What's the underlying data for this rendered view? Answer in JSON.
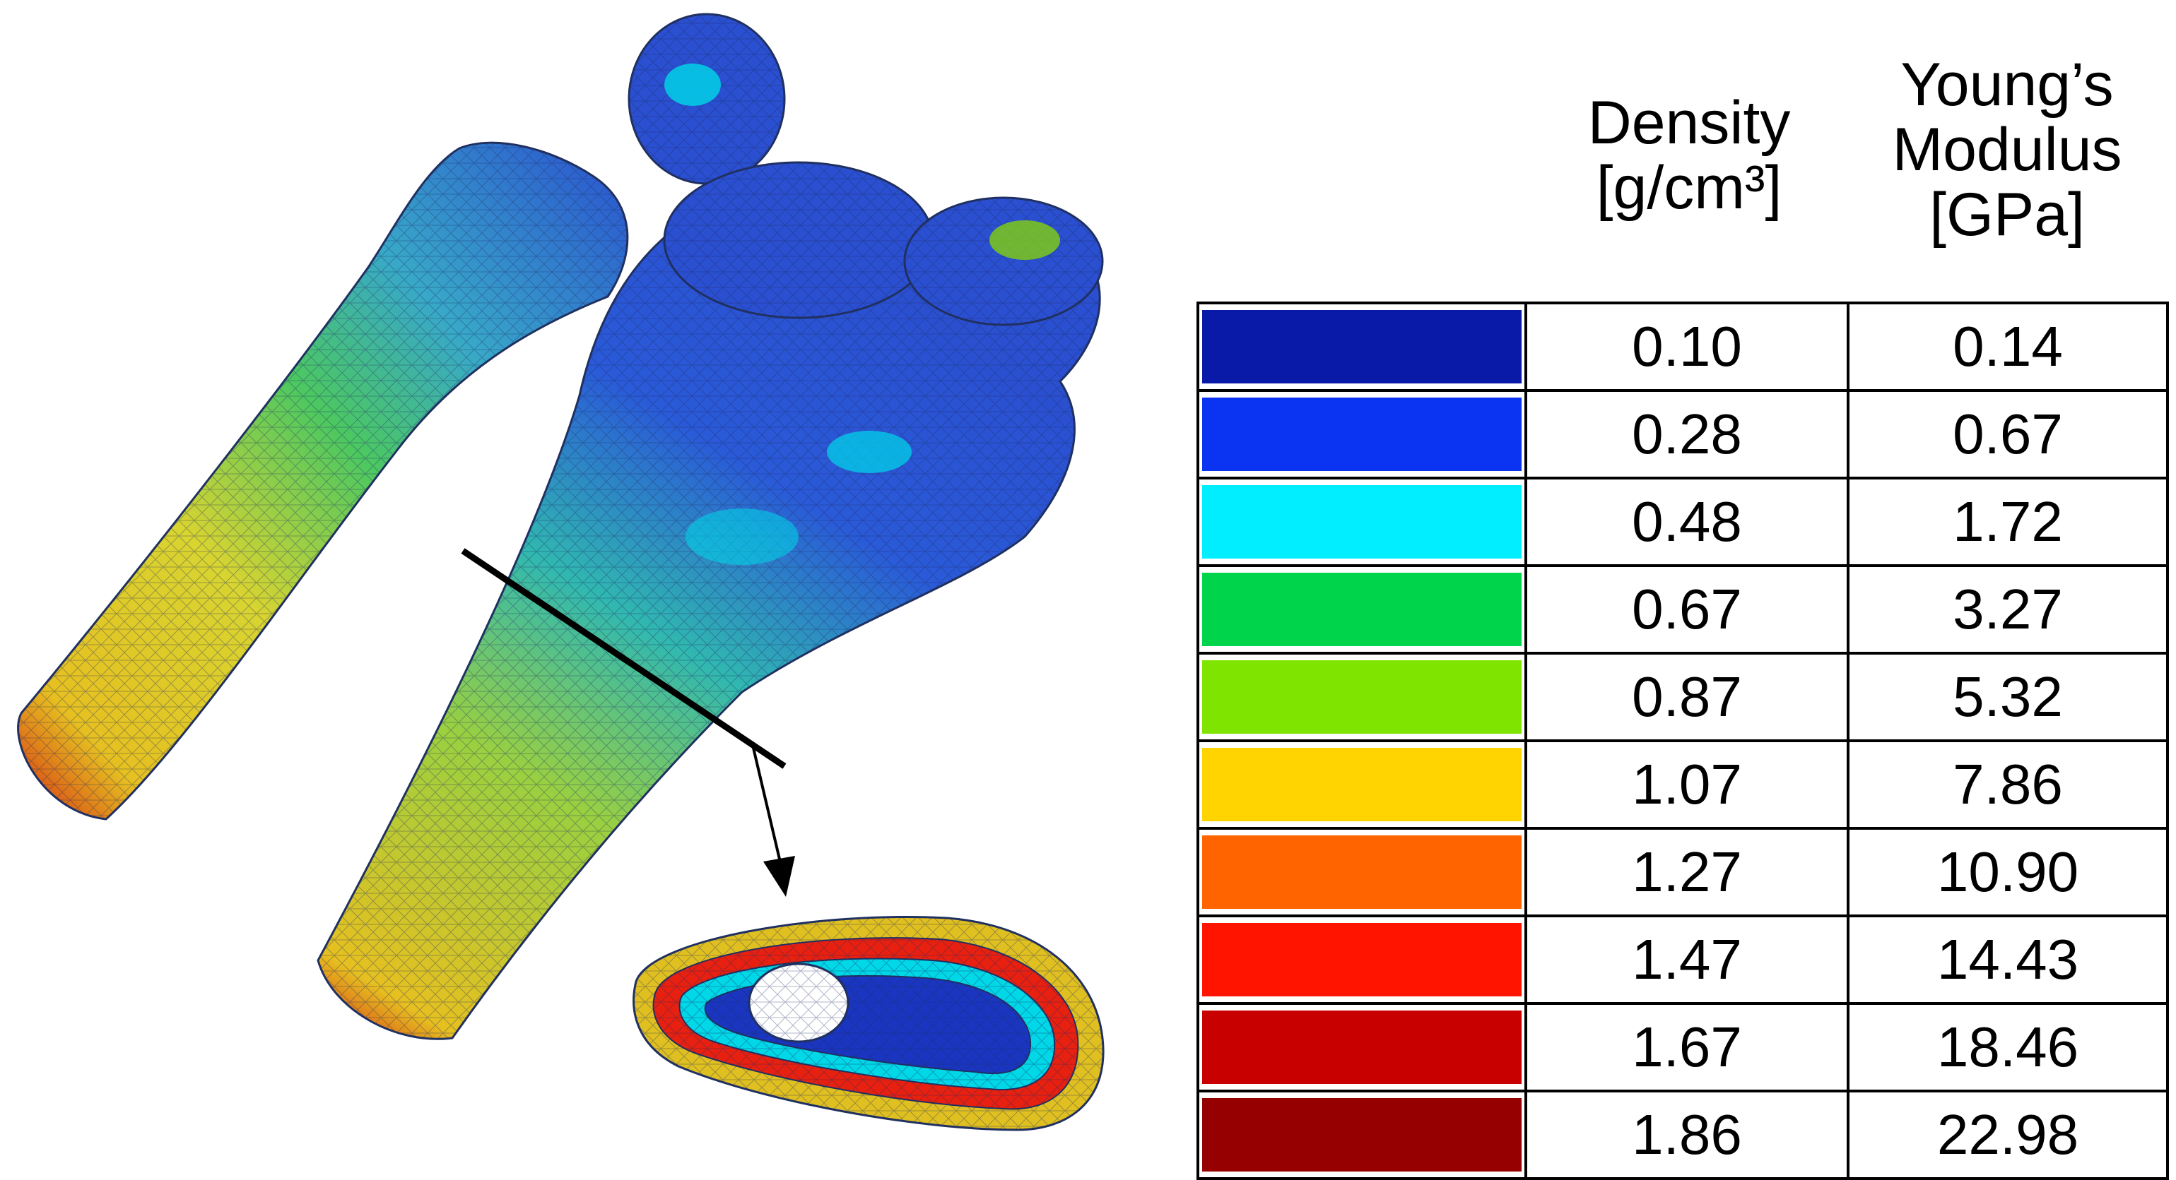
{
  "legend": {
    "headers": {
      "density": [
        "Density",
        "[g/cm³]"
      ],
      "modulus": [
        "Young’s",
        "Modulus",
        "[GPa]"
      ]
    },
    "rows": [
      {
        "color": "#0a1aa8",
        "density": "0.10",
        "modulus": "0.14"
      },
      {
        "color": "#0a34f2",
        "density": "0.28",
        "modulus": "0.67"
      },
      {
        "color": "#00eeff",
        "density": "0.48",
        "modulus": "1.72"
      },
      {
        "color": "#00d44a",
        "density": "0.67",
        "modulus": "3.27"
      },
      {
        "color": "#7ee400",
        "density": "0.87",
        "modulus": "5.32"
      },
      {
        "color": "#ffd400",
        "density": "1.07",
        "modulus": "7.86"
      },
      {
        "color": "#ff6400",
        "density": "1.27",
        "modulus": "10.90"
      },
      {
        "color": "#ff1400",
        "density": "1.47",
        "modulus": "14.43"
      },
      {
        "color": "#c80000",
        "density": "1.67",
        "modulus": "18.46"
      },
      {
        "color": "#960000",
        "density": "1.86",
        "modulus": "22.98"
      }
    ]
  },
  "figure": {
    "mesh_colors": [
      "#2a4fd0",
      "#1a35c0",
      "#00e0f0",
      "#00c85a",
      "#8ad800",
      "#e6d020",
      "#ff6a00",
      "#e82010",
      "#b40000"
    ]
  }
}
